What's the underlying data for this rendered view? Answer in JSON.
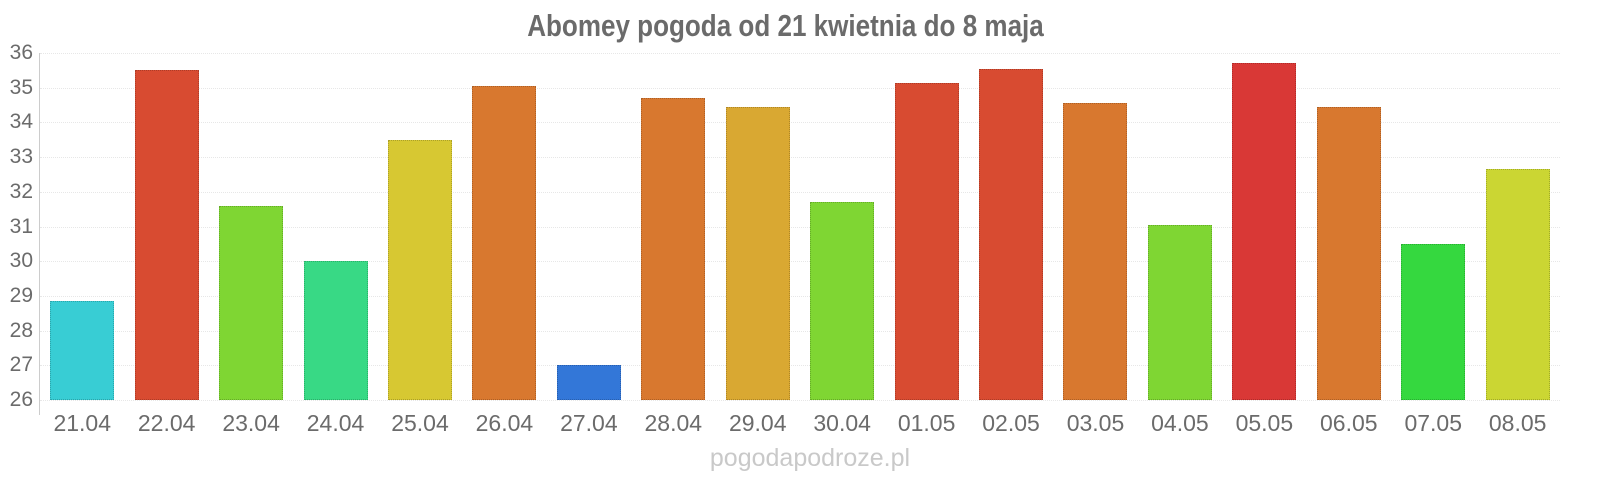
{
  "title": "Abomey pogoda od 21 kwietnia do 8 maja",
  "watermark": "pogodapodroze.pl",
  "chart_data": {
    "type": "bar",
    "title": "Abomey pogoda od 21 kwietnia do 8 maja",
    "xlabel": "",
    "ylabel": "",
    "ylim": [
      26,
      36
    ],
    "yticks": [
      26,
      27,
      28,
      29,
      30,
      31,
      32,
      33,
      34,
      35,
      36
    ],
    "grid": "horizontal-dotted",
    "legend": "none",
    "categories": [
      "21.04",
      "22.04",
      "23.04",
      "24.04",
      "25.04",
      "26.04",
      "27.04",
      "28.04",
      "29.04",
      "30.04",
      "01.05",
      "02.05",
      "03.05",
      "04.05",
      "05.05",
      "06.05",
      "07.05",
      "08.05"
    ],
    "values": [
      28.85,
      35.5,
      31.6,
      30.0,
      33.5,
      35.05,
      27.0,
      34.7,
      34.45,
      31.7,
      35.15,
      35.55,
      34.55,
      31.05,
      35.7,
      34.45,
      30.5,
      32.65
    ],
    "bar_colors": [
      "#38cdd4",
      "#d84b31",
      "#7fd633",
      "#38d985",
      "#d7c832",
      "#d8782f",
      "#3377d8",
      "#d8782f",
      "#d9a832",
      "#7fd633",
      "#d84b31",
      "#d84b31",
      "#d8782f",
      "#7fd633",
      "#d93836",
      "#d8782f",
      "#35d83f",
      "#cbd633"
    ]
  }
}
